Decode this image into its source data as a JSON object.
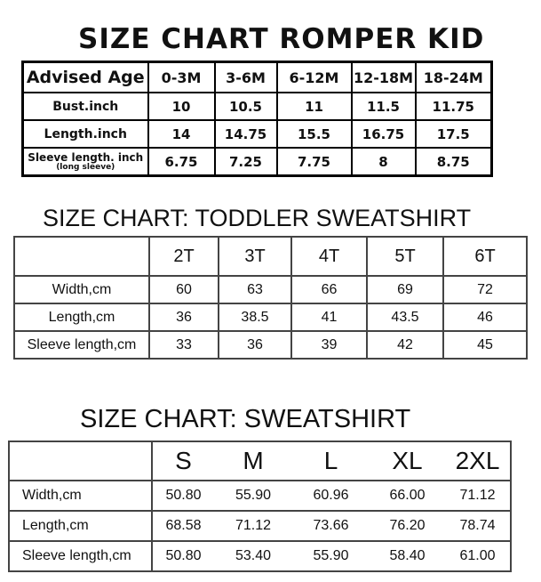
{
  "romper": {
    "title": "SIZE CHART ROMPER KID",
    "header_label": "Advised Age",
    "columns": [
      "0-3M",
      "3-6M",
      "6-12M",
      "12-18M",
      "18-24M"
    ],
    "rows": [
      {
        "label": "Bust.inch",
        "sublabel": "",
        "values": [
          "10",
          "10.5",
          "11",
          "11.5",
          "11.75"
        ]
      },
      {
        "label": "Length.inch",
        "sublabel": "",
        "values": [
          "14",
          "14.75",
          "15.5",
          "16.75",
          "17.5"
        ]
      },
      {
        "label": "Sleeve length. inch",
        "sublabel": "(long sleeve)",
        "values": [
          "6.75",
          "7.25",
          "7.75",
          "8",
          "8.75"
        ]
      }
    ]
  },
  "toddler": {
    "title": "SIZE CHART: TODDLER SWEATSHIRT",
    "header_label": "",
    "columns": [
      "2T",
      "3T",
      "4T",
      "5T",
      "6T"
    ],
    "rows": [
      {
        "label": "Width,cm",
        "values": [
          "60",
          "63",
          "66",
          "69",
          "72"
        ]
      },
      {
        "label": "Length,cm",
        "values": [
          "36",
          "38.5",
          "41",
          "43.5",
          "46"
        ]
      },
      {
        "label": "Sleeve length,cm",
        "values": [
          "33",
          "36",
          "39",
          "42",
          "45"
        ]
      }
    ]
  },
  "sweatshirt": {
    "title": "SIZE CHART: SWEATSHIRT",
    "header_label": "",
    "columns": [
      "S",
      "M",
      "L",
      "XL",
      "2XL"
    ],
    "rows": [
      {
        "label": "Width,cm",
        "values": [
          "50.80",
          "55.90",
          "60.96",
          "66.00",
          "71.12"
        ]
      },
      {
        "label": "Length,cm",
        "values": [
          "68.58",
          "71.12",
          "73.66",
          "76.20",
          "78.74"
        ]
      },
      {
        "label": "Sleeve length,cm",
        "values": [
          "50.80",
          "53.40",
          "55.90",
          "58.40",
          "61.00"
        ]
      }
    ]
  }
}
